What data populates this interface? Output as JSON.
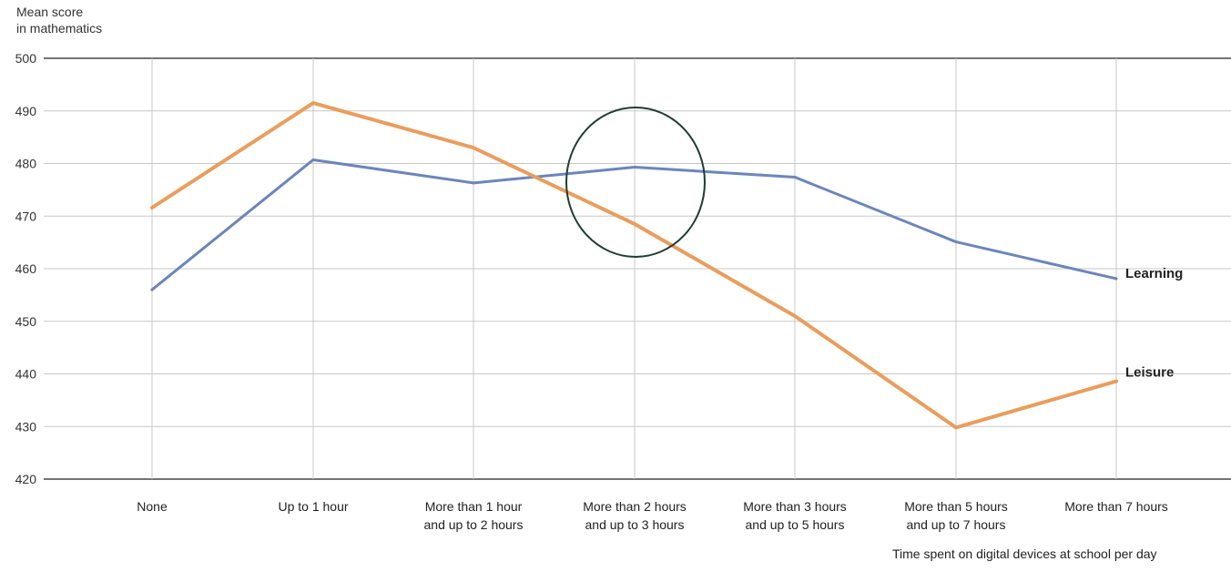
{
  "chart_data": {
    "type": "line",
    "ylabel_lines": [
      "Mean score",
      "in mathematics"
    ],
    "xlabel": "Time spent on digital devices at school per day",
    "ylim": [
      420,
      500
    ],
    "yticks": [
      420,
      430,
      440,
      450,
      460,
      470,
      480,
      490,
      500
    ],
    "categories": [
      [
        "None"
      ],
      [
        "Up to 1 hour"
      ],
      [
        "More than 1 hour",
        "and up to 2 hours"
      ],
      [
        "More than 2 hours",
        "and up to 3 hours"
      ],
      [
        "More than 3 hours",
        "and up to 5 hours"
      ],
      [
        "More than 5 hours",
        "and up to 7 hours"
      ],
      [
        "More than 7 hours"
      ]
    ],
    "series": [
      {
        "name": "Learning",
        "color": "#6a86bd",
        "values": [
          456,
          480.7,
          476.3,
          479.3,
          477.4,
          465.1,
          458.1
        ]
      },
      {
        "name": "Leisure",
        "color": "#eb9d5c",
        "values": [
          471.6,
          491.5,
          483,
          468.5,
          451,
          429.8,
          438.6
        ]
      }
    ],
    "grid": true,
    "highlight": {
      "shape": "ellipse",
      "category_index": 3,
      "color": "#1e3d32"
    }
  }
}
